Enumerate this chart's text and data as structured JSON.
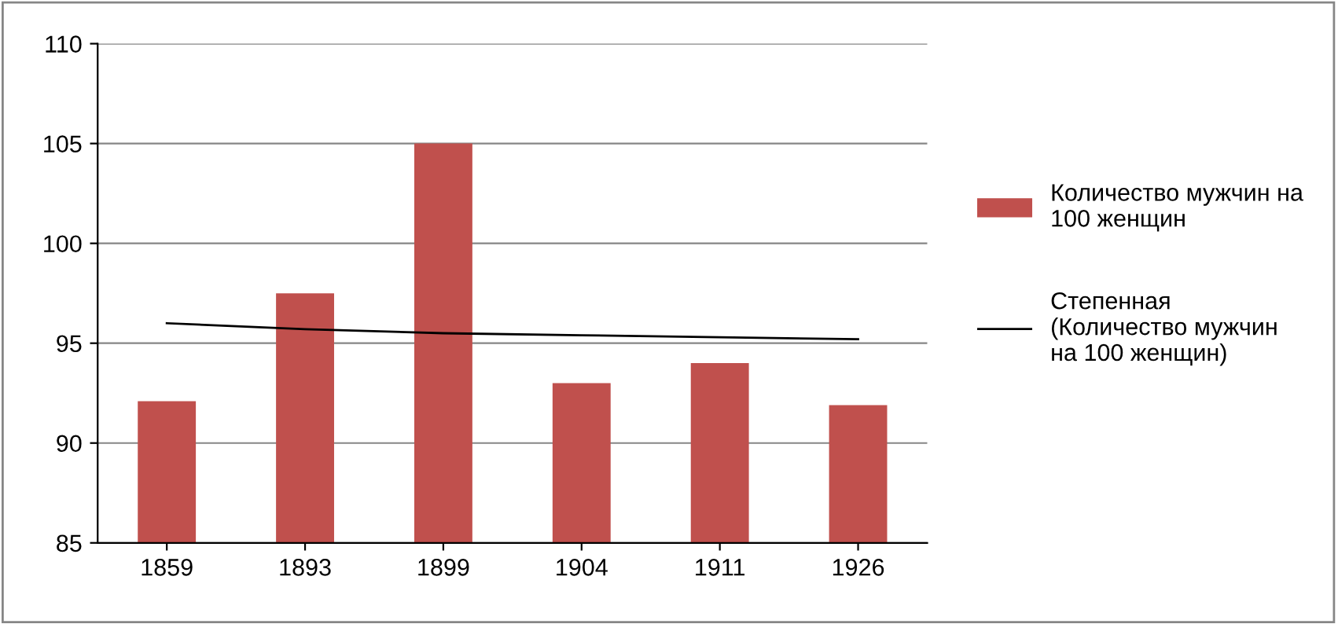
{
  "chart_data": {
    "type": "bar",
    "categories": [
      "1859",
      "1893",
      "1899",
      "1904",
      "1911",
      "1926"
    ],
    "series": [
      {
        "name": "Количество мужчин на 100 женщин",
        "color": "#c0504d",
        "values": [
          92.1,
          97.5,
          105.0,
          93.0,
          94.0,
          91.9
        ]
      },
      {
        "name": "Степенная (Количество мужчин на 100 женщин)",
        "type": "line",
        "color": "#000000",
        "values": [
          96.0,
          95.7,
          95.5,
          95.4,
          95.3,
          95.2
        ]
      }
    ],
    "ylim": [
      85,
      110
    ],
    "yticks": [
      85,
      90,
      95,
      100,
      105,
      110
    ],
    "grid": "y",
    "legend": "right"
  }
}
